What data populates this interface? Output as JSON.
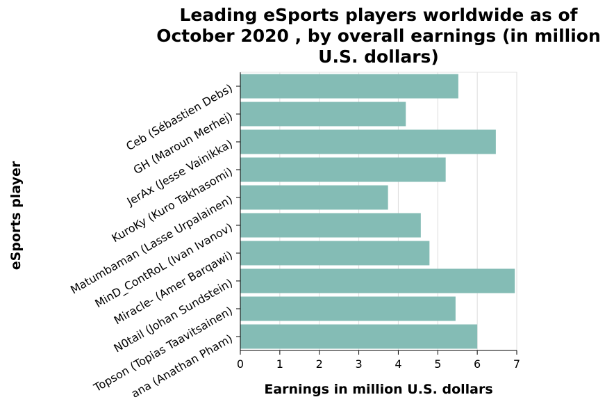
{
  "chart_data": {
    "type": "bar",
    "orientation": "horizontal",
    "title_lines": [
      "Leading eSports players worldwide as of",
      "October 2020 , by overall earnings (in million",
      "U.S. dollars)"
    ],
    "xlabel": "Earnings in million U.S. dollars",
    "ylabel": "eSports player",
    "xlim": [
      0,
      7
    ],
    "xticks": [
      "0",
      "1",
      "2",
      "3",
      "4",
      "5",
      "6",
      "7"
    ],
    "grid": true,
    "bar_color": "#84bcb5",
    "categories": [
      "Ceb (Sébastien Debs)",
      "GH (Maroun Merhej)",
      "JerAx (Jesse Vainikka)",
      "KuroKy (Kuro Takhasomi)",
      "Matumbaman (Lasse Urpalainen)",
      "MinD_ContRoL (Ivan Ivanov)",
      "Miracle- (Amer Barqawi)",
      "N0tail (Johan Sundstein)",
      "Topson (Topias Taavitsainen)",
      "ana (Anathan Pham)"
    ],
    "values": [
      5.52,
      4.19,
      6.47,
      5.2,
      3.74,
      4.57,
      4.79,
      6.95,
      5.45,
      6.0
    ]
  }
}
